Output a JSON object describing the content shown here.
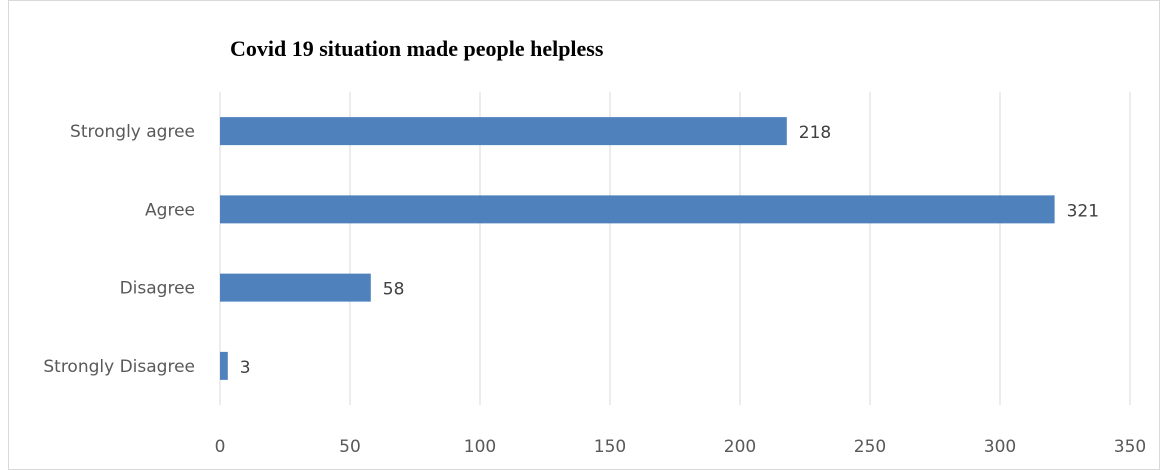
{
  "chart_data": {
    "type": "bar",
    "orientation": "horizontal",
    "title": "Covid 19 situation made people helpless",
    "categories": [
      "Strongly agree",
      "Agree",
      "Disagree",
      "Strongly Disagree"
    ],
    "values": [
      218,
      321,
      58,
      3
    ],
    "xlim": [
      0,
      350
    ],
    "xticks": [
      0,
      50,
      100,
      150,
      200,
      250,
      300,
      350
    ],
    "xlabel": "",
    "ylabel": "",
    "grid": "vertical",
    "legend": "none",
    "bar_color": "#4f81bd",
    "grid_color": "#d9d9d9"
  }
}
